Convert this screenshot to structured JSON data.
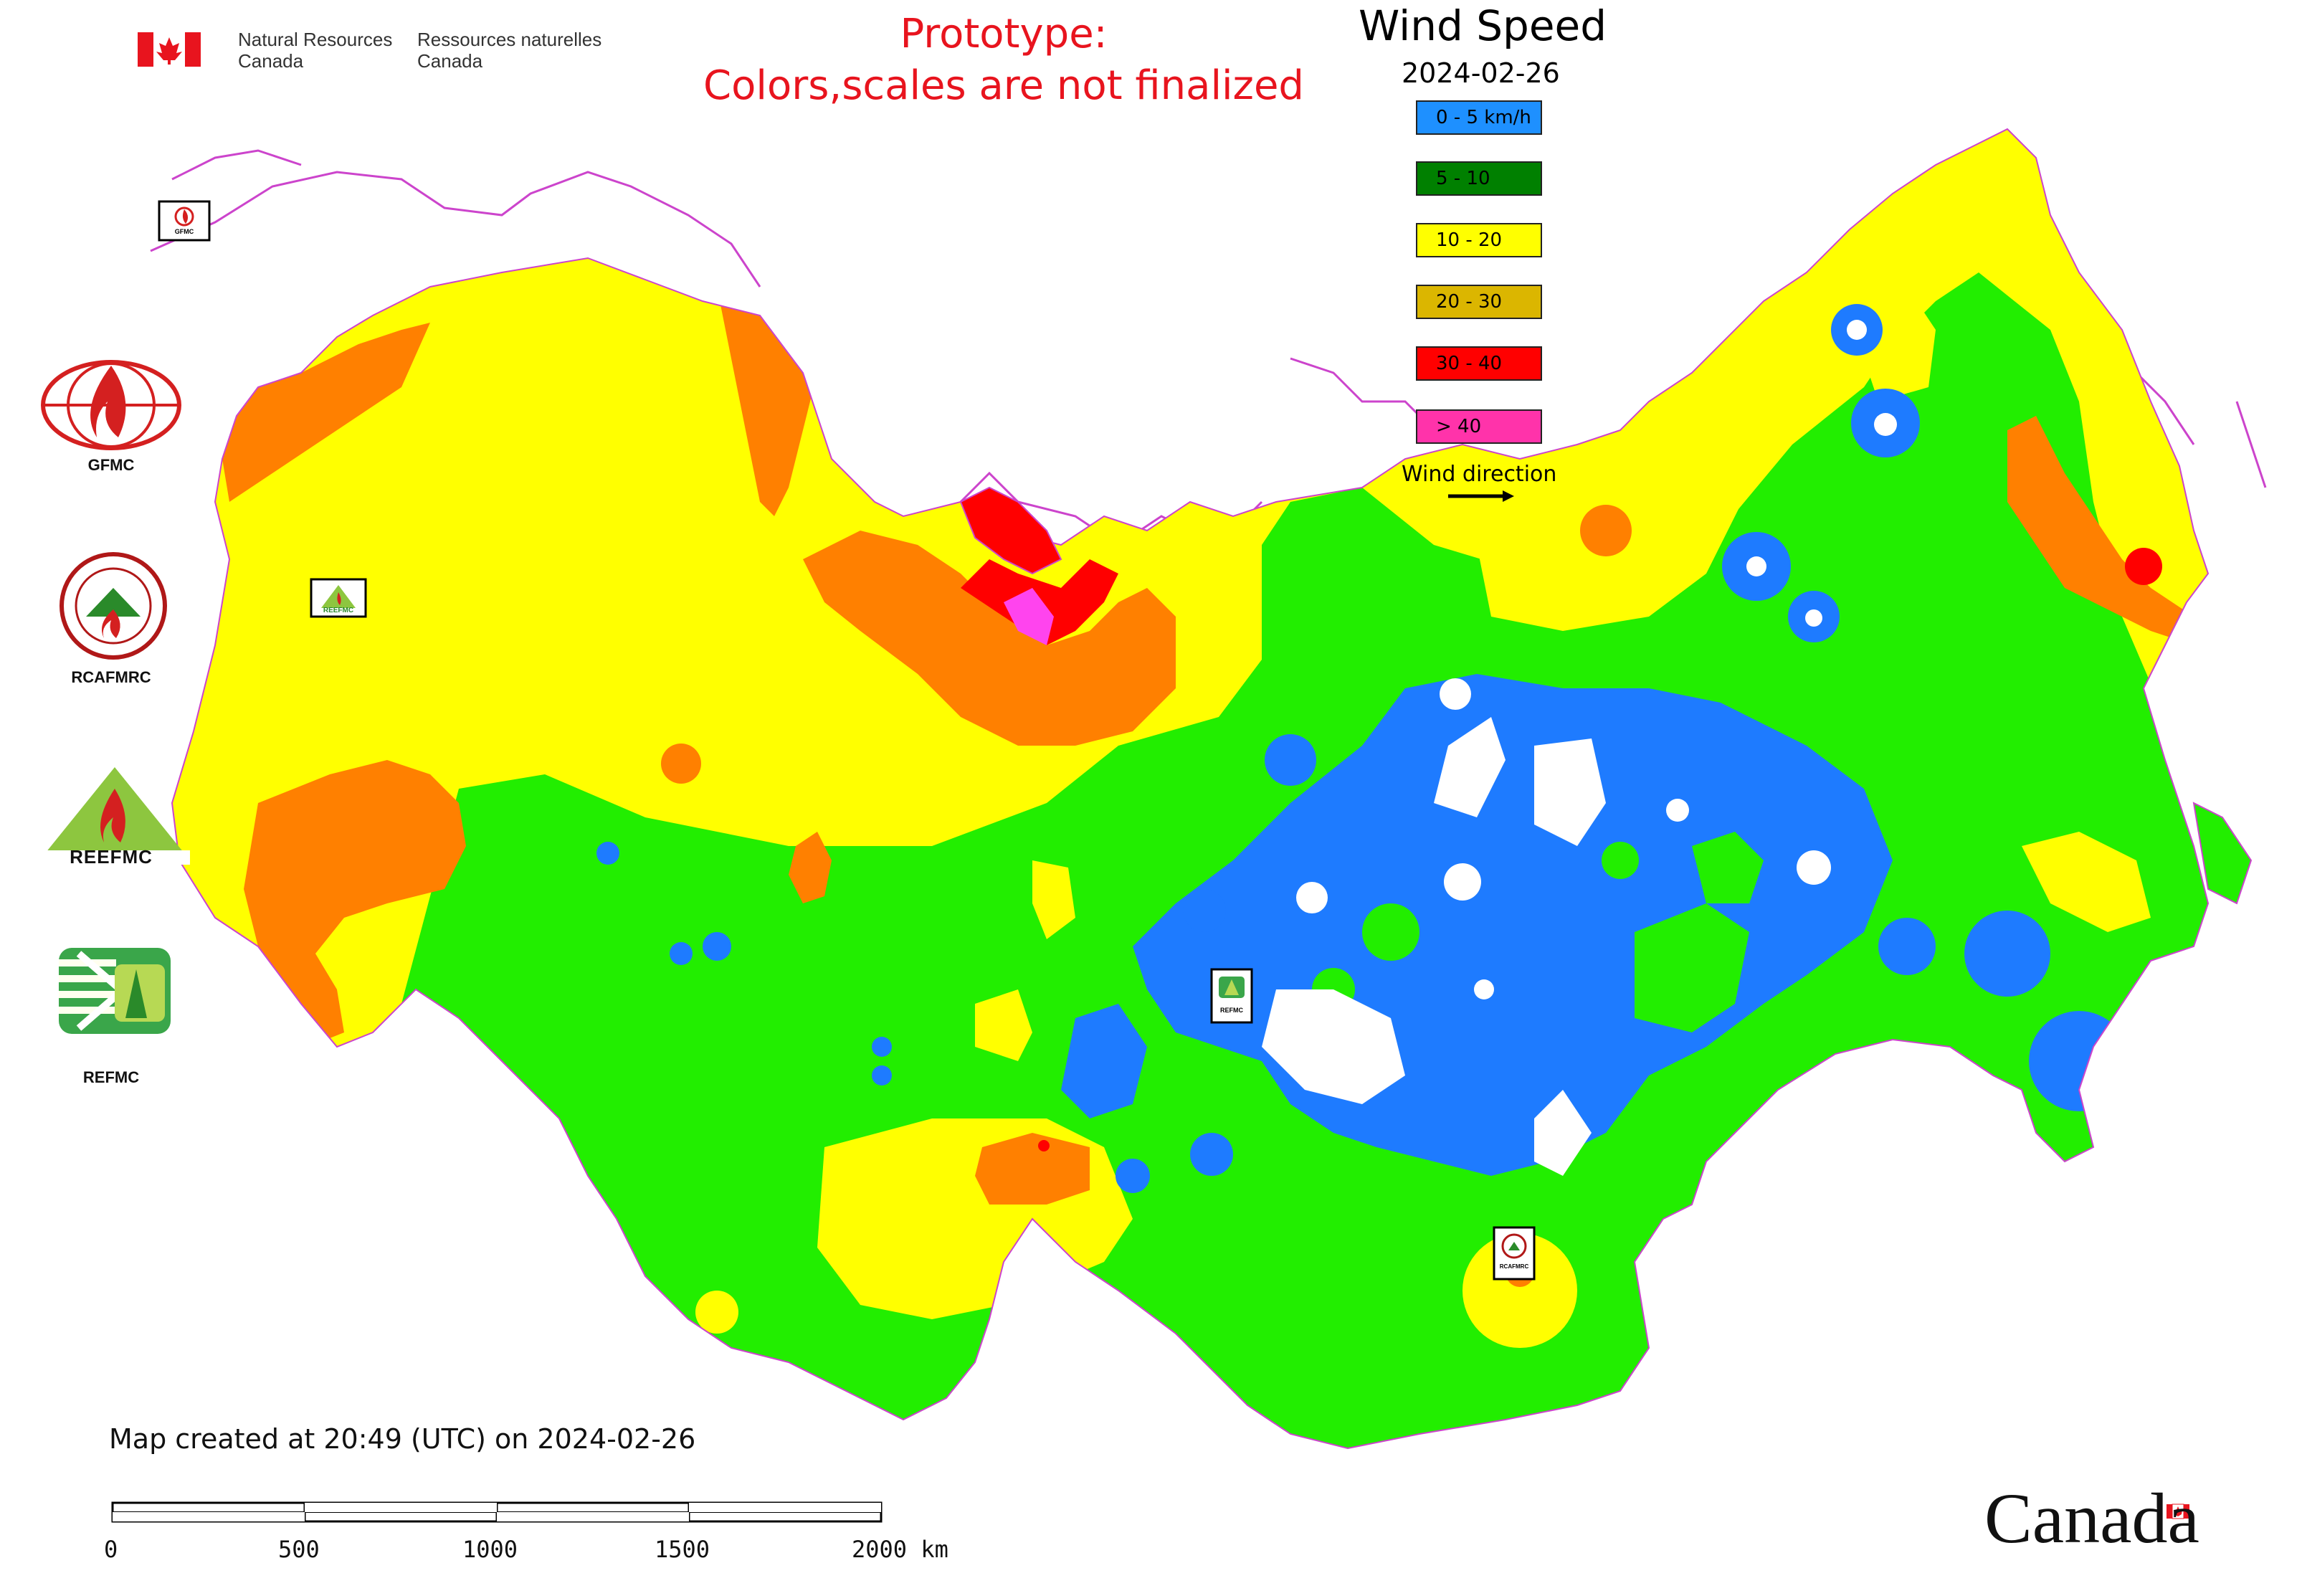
{
  "header": {
    "agency_en_line1": "Natural Resources",
    "agency_en_line2": "Canada",
    "agency_fr_line1": "Ressources naturelles",
    "agency_fr_line2": "Canada",
    "prototype_line1": "Prototype:",
    "prototype_line2": "Colors,scales are not finalized"
  },
  "legend": {
    "title": "Wind Speed",
    "date": "2024-02-26",
    "items": [
      {
        "label": "0 - 5 km/h",
        "color": "#1e90ff"
      },
      {
        "label": "5 - 10",
        "color": "#008000"
      },
      {
        "label": "10 - 20",
        "color": "#ffff00"
      },
      {
        "label": "20 - 30",
        "color": "#dbb600"
      },
      {
        "label": "30 - 40",
        "color": "#ff0000"
      },
      {
        "label": "> 40",
        "color": "#ff33aa"
      }
    ],
    "wind_direction_label": "Wind direction"
  },
  "map_colors": {
    "calm": "#1e7bff",
    "light": "#22ee00",
    "moderate": "#ffff00",
    "strong": "#ff8000",
    "very_strong": "#ff0000",
    "extreme": "#ff44ee",
    "boundary": "#cc44cc"
  },
  "organizations": [
    {
      "name": "GFMC",
      "icon": "gfmc-logo-icon"
    },
    {
      "name": "RCAFMRC",
      "icon": "rcafmrc-logo-icon"
    },
    {
      "name": "REEFMC",
      "icon": "reefmc-logo-icon"
    },
    {
      "name": "REFMC",
      "icon": "refmc-logo-icon"
    }
  ],
  "station_labels": {
    "gfmc": "GFMC",
    "reefmc": "REEFMC",
    "refmc": "REFMC",
    "rcafmrc": "RCAFMRC"
  },
  "footer": {
    "created": "Map created at 20:49 (UTC) on 2024-02-26",
    "scale_ticks": [
      "0",
      "500",
      "1000",
      "1500",
      "2000 km"
    ],
    "wordmark": "Canada"
  }
}
